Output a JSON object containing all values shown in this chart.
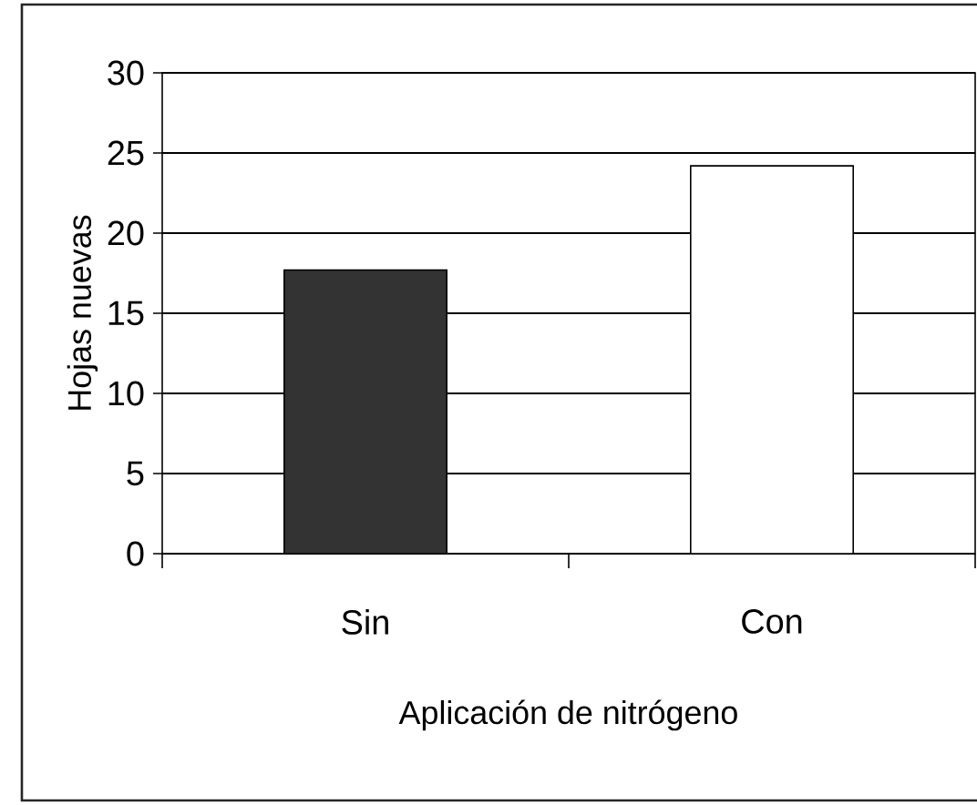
{
  "chart_data": {
    "type": "bar",
    "xlabel": "Aplicación de nitrógeno",
    "ylabel": "Hojas nuevas",
    "categories": [
      "Sin",
      "Con"
    ],
    "values": [
      17.7,
      24.2
    ],
    "colors": [
      "#333333",
      "#ffffff"
    ],
    "ylim": [
      0,
      30
    ],
    "yticks": [
      0,
      5,
      10,
      15,
      20,
      25,
      30
    ],
    "grid": "y"
  }
}
